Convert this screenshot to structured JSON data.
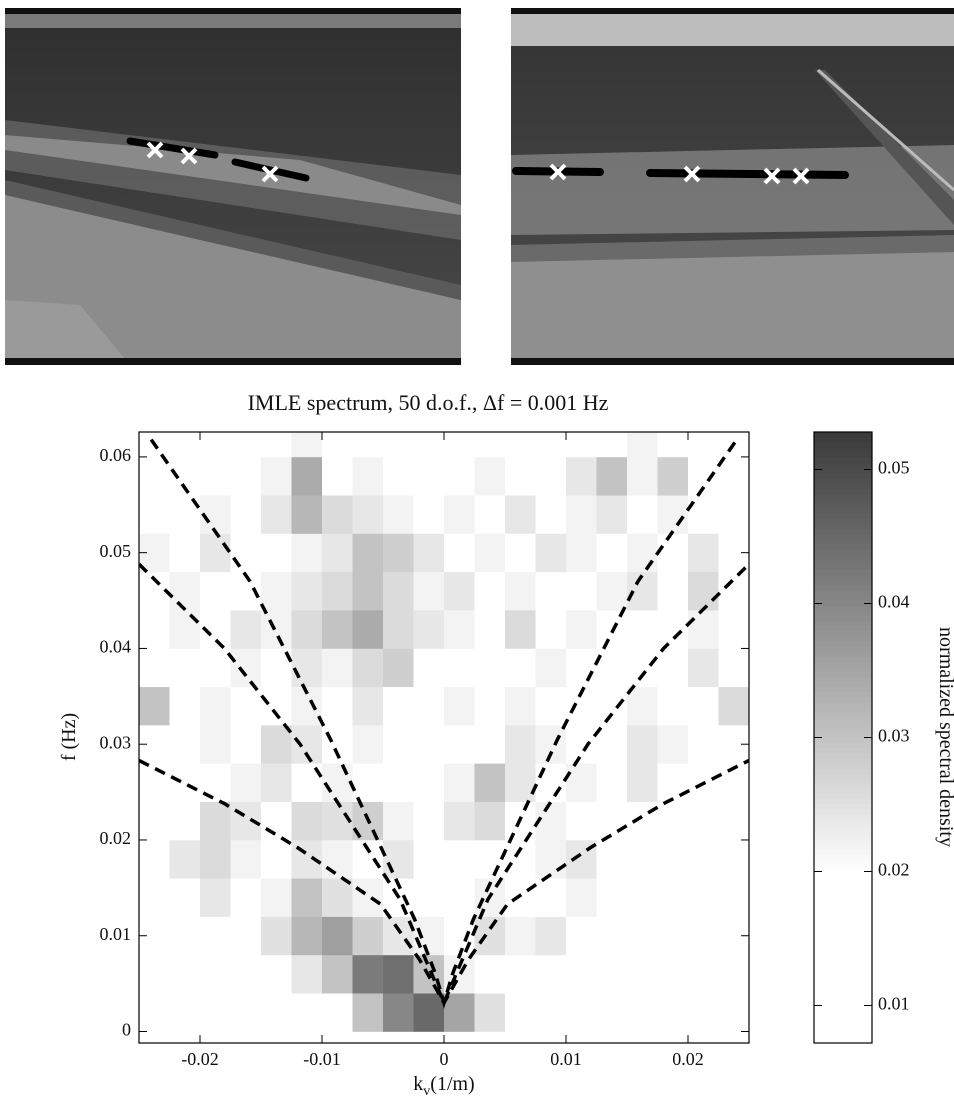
{
  "chart_data": {
    "type": "heatmap",
    "title": "IMLE spectrum, 50 d.o.f., Δf = 0.001 Hz",
    "x_label": [
      "k",
      "v",
      "(1/m)"
    ],
    "y_label": "f (Hz)",
    "colorbar_label": "normalized spectral density",
    "xlim": [
      -0.025,
      0.025
    ],
    "ylim": [
      -0.0012,
      0.0626
    ],
    "xticks": [
      -0.02,
      -0.01,
      0,
      0.01,
      0.02
    ],
    "yticks": [
      0,
      0.01,
      0.02,
      0.03,
      0.04,
      0.05,
      0.06
    ],
    "clim": [
      0.0072,
      0.0528
    ],
    "cticks": [
      0.01,
      0.02,
      0.03,
      0.04,
      0.05
    ],
    "colormap_floor": 0.02,
    "color_low": "#ffffff",
    "color_high": "#3a3a3a",
    "x": [
      -0.02375,
      -0.02125,
      -0.01875,
      -0.01625,
      -0.01375,
      -0.01125,
      -0.00875,
      -0.00625,
      -0.00375,
      -0.00125,
      0.00125,
      0.00375,
      0.00625,
      0.00875,
      0.01125,
      0.01375,
      0.01625,
      0.01875,
      0.02125,
      0.02375
    ],
    "y": [
      0.002,
      0.006,
      0.01,
      0.014,
      0.018,
      0.022,
      0.026,
      0.03,
      0.034,
      0.038,
      0.042,
      0.046,
      0.05,
      0.054,
      0.058,
      0.062
    ],
    "z": [
      [
        0.01,
        0.01,
        0.01,
        0.01,
        0.012,
        0.013,
        0.018,
        0.03,
        0.04,
        0.045,
        0.035,
        0.025,
        0.015,
        0.01,
        0.01,
        0.01,
        0.01,
        0.012,
        0.01,
        0.01
      ],
      [
        0.01,
        0.01,
        0.012,
        0.015,
        0.02,
        0.024,
        0.03,
        0.042,
        0.044,
        0.03,
        0.022,
        0.018,
        0.02,
        0.015,
        0.012,
        0.01,
        0.01,
        0.01,
        0.01,
        0.01
      ],
      [
        0.012,
        0.014,
        0.018,
        0.02,
        0.025,
        0.032,
        0.036,
        0.028,
        0.024,
        0.022,
        0.02,
        0.025,
        0.022,
        0.024,
        0.02,
        0.014,
        0.012,
        0.014,
        0.012,
        0.01
      ],
      [
        0.014,
        0.02,
        0.024,
        0.02,
        0.022,
        0.03,
        0.025,
        0.022,
        0.02,
        0.016,
        0.02,
        0.022,
        0.02,
        0.018,
        0.022,
        0.02,
        0.016,
        0.018,
        0.014,
        0.012
      ],
      [
        0.018,
        0.024,
        0.026,
        0.022,
        0.02,
        0.024,
        0.022,
        0.02,
        0.024,
        0.018,
        0.016,
        0.02,
        0.018,
        0.022,
        0.024,
        0.018,
        0.02,
        0.016,
        0.014,
        0.012
      ],
      [
        0.02,
        0.018,
        0.026,
        0.024,
        0.02,
        0.026,
        0.025,
        0.028,
        0.022,
        0.02,
        0.024,
        0.026,
        0.02,
        0.022,
        0.02,
        0.018,
        0.016,
        0.02,
        0.018,
        0.014
      ],
      [
        0.016,
        0.02,
        0.018,
        0.022,
        0.024,
        0.02,
        0.022,
        0.02,
        0.02,
        0.018,
        0.022,
        0.03,
        0.024,
        0.02,
        0.022,
        0.02,
        0.024,
        0.018,
        0.016,
        0.02
      ],
      [
        0.018,
        0.016,
        0.022,
        0.02,
        0.026,
        0.024,
        0.02,
        0.022,
        0.02,
        0.016,
        0.02,
        0.018,
        0.024,
        0.022,
        0.02,
        0.018,
        0.024,
        0.022,
        0.02,
        0.018
      ],
      [
        0.03,
        0.02,
        0.022,
        0.02,
        0.018,
        0.022,
        0.02,
        0.024,
        0.018,
        0.02,
        0.022,
        0.02,
        0.022,
        0.02,
        0.018,
        0.02,
        0.022,
        0.02,
        0.018,
        0.026
      ],
      [
        0.02,
        0.018,
        0.02,
        0.022,
        0.02,
        0.024,
        0.022,
        0.026,
        0.028,
        0.02,
        0.02,
        0.018,
        0.02,
        0.022,
        0.02,
        0.018,
        0.02,
        0.018,
        0.024,
        0.02
      ],
      [
        0.018,
        0.022,
        0.02,
        0.024,
        0.022,
        0.026,
        0.03,
        0.034,
        0.026,
        0.024,
        0.022,
        0.02,
        0.026,
        0.02,
        0.022,
        0.02,
        0.018,
        0.02,
        0.022,
        0.018
      ],
      [
        0.02,
        0.022,
        0.018,
        0.02,
        0.022,
        0.024,
        0.026,
        0.03,
        0.026,
        0.022,
        0.024,
        0.02,
        0.022,
        0.02,
        0.02,
        0.022,
        0.024,
        0.02,
        0.026,
        0.02
      ],
      [
        0.022,
        0.02,
        0.024,
        0.02,
        0.018,
        0.022,
        0.024,
        0.03,
        0.028,
        0.024,
        0.02,
        0.022,
        0.02,
        0.024,
        0.022,
        0.02,
        0.022,
        0.02,
        0.024,
        0.018
      ],
      [
        0.018,
        0.02,
        0.022,
        0.02,
        0.024,
        0.032,
        0.026,
        0.024,
        0.022,
        0.02,
        0.022,
        0.02,
        0.024,
        0.02,
        0.022,
        0.024,
        0.02,
        0.022,
        0.02,
        0.018
      ],
      [
        0.016,
        0.018,
        0.02,
        0.02,
        0.022,
        0.034,
        0.02,
        0.022,
        0.02,
        0.018,
        0.02,
        0.022,
        0.02,
        0.02,
        0.024,
        0.03,
        0.022,
        0.028,
        0.02,
        0.018
      ],
      [
        0.014,
        0.016,
        0.018,
        0.02,
        0.02,
        0.022,
        0.02,
        0.018,
        0.02,
        0.016,
        0.018,
        0.02,
        0.018,
        0.02,
        0.02,
        0.02,
        0.022,
        0.02,
        0.02,
        0.016
      ]
    ],
    "curves": [
      {
        "color": "#000000",
        "x": [
          -0.025,
          -0.018,
          -0.012,
          -0.0052,
          -0.002,
          0,
          0.002,
          0.0052,
          0.012,
          0.018,
          0.025
        ],
        "y": [
          0.0283,
          0.0238,
          0.0192,
          0.0133,
          0.0075,
          0.003,
          0.0075,
          0.0133,
          0.0192,
          0.0238,
          0.0283
        ]
      },
      {
        "color": "#000000",
        "x": [
          -0.025,
          -0.018,
          -0.0118,
          -0.0036,
          -0.001,
          0,
          0.001,
          0.0036,
          0.0118,
          0.018,
          0.025
        ],
        "y": [
          0.0488,
          0.04,
          0.03,
          0.0138,
          0.006,
          0.003,
          0.006,
          0.0138,
          0.03,
          0.04,
          0.0488
        ]
      },
      {
        "color": "#000000",
        "x": [
          -0.024,
          -0.0159,
          -0.0093,
          -0.0024,
          -0.0007,
          0,
          0.0007,
          0.0024,
          0.0093,
          0.0159,
          0.024
        ],
        "y": [
          0.0618,
          0.047,
          0.0305,
          0.0117,
          0.006,
          0.003,
          0.006,
          0.0117,
          0.0305,
          0.047,
          0.0618
        ]
      }
    ]
  }
}
